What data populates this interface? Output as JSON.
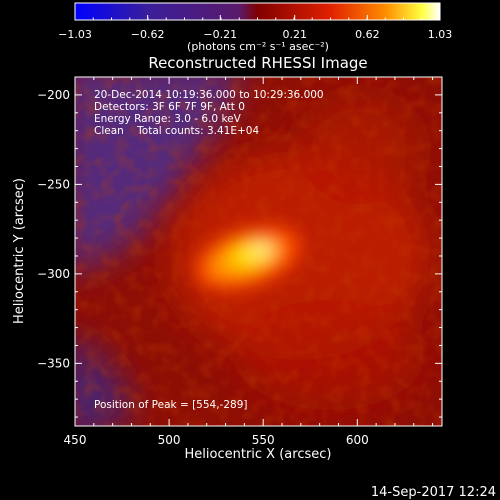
{
  "chart_data": {
    "type": "heatmap",
    "title": "Reconstructed RHESSI Image",
    "xlabel": "Heliocentric X (arcsec)",
    "ylabel": "Heliocentric Y (arcsec)",
    "xlim": [
      450,
      645
    ],
    "ylim": [
      -385,
      -190
    ],
    "xticks": [
      450,
      500,
      550,
      600
    ],
    "yticks": [
      -200,
      -250,
      -300,
      -350
    ],
    "colorbar": {
      "min": -1.03,
      "max": 1.03,
      "ticks": [
        "-1.03",
        "-0.62",
        "-0.21",
        "0.21",
        "0.62",
        "1.03"
      ],
      "label": "(photons cm⁻² s⁻¹ asec⁻²)",
      "colors": [
        "#0000ff",
        "#4b1a8a",
        "#6a2f9a",
        "#8b0000",
        "#dd2200",
        "#ff7700",
        "#ffee00",
        "#ffffff"
      ]
    },
    "annotations": [
      "20-Dec-2014 10:19:36.000 to 10:29:36.000",
      "Detectors: 3F 6F 7F 9F, Att 0",
      "Energy Range: 3.0 - 6.0 keV",
      "Clean    Total counts: 3.41E+04"
    ],
    "peak_label": "Position of Peak = [554,-289]",
    "peak": {
      "x": 554,
      "y": -289,
      "value": 1.03
    }
  },
  "footer": {
    "timestamp": "14-Sep-2017 12:24"
  }
}
